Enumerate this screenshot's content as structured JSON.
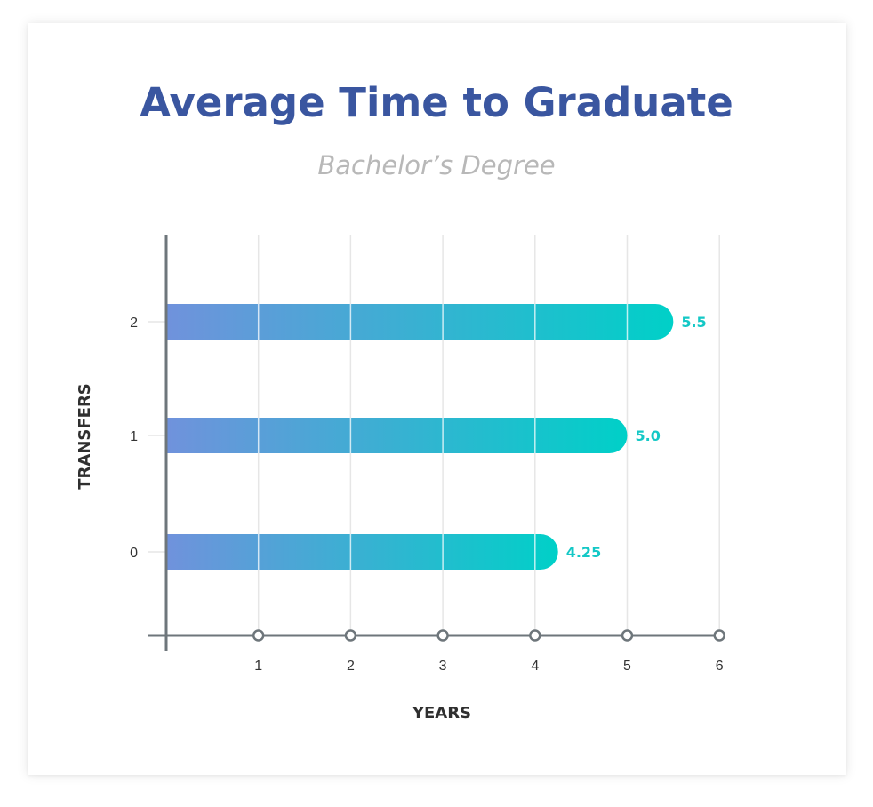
{
  "chart_data": {
    "type": "bar",
    "orientation": "horizontal",
    "title": "Average Time to Graduate",
    "subtitle": "Bachelor’s Degree",
    "xlabel": "YEARS",
    "ylabel": "TRANSFERS",
    "categories": [
      "0",
      "1",
      "2"
    ],
    "values": [
      4.25,
      5.0,
      5.5
    ],
    "value_labels": [
      "4.25",
      "5.0",
      "5.5"
    ],
    "x_ticks": [
      "1",
      "2",
      "3",
      "4",
      "5",
      "6"
    ],
    "xlim": [
      0,
      6
    ],
    "grid": true,
    "colors": {
      "title": "#3a56a0",
      "subtitle": "#b8b8b8",
      "bar_gradient_start": "#7092dc",
      "bar_gradient_end": "#00d0c8",
      "value_label": "#14c8c6",
      "axis": "#6e767b",
      "grid": "#e6e6e6"
    }
  }
}
